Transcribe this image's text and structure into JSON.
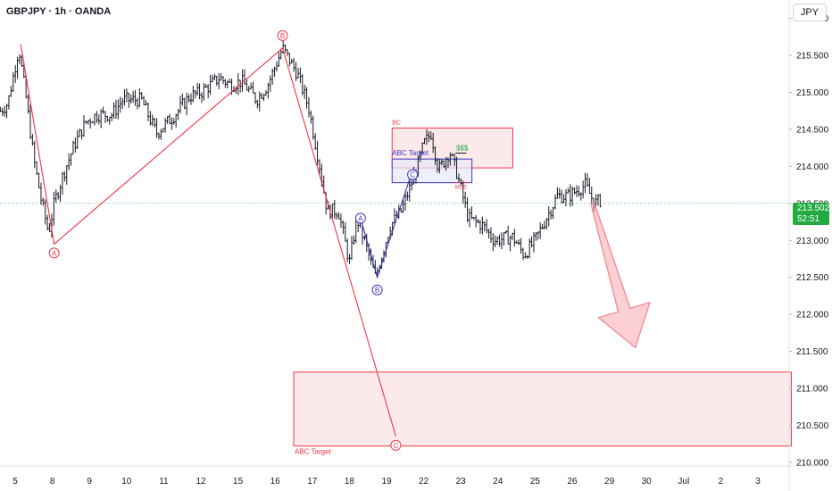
{
  "header": {
    "ticker": "GBPJPY · 1h · OANDA",
    "currency_button": "JPY"
  },
  "colors": {
    "bull": "#26a69a",
    "bar": "#131722",
    "wave_line": "#f23645",
    "zone_fill": "#fce9ea",
    "zone_border": "#f23645",
    "blue": "#3a35c2",
    "green": "#22ab3f",
    "arrow": "#f7a8af"
  },
  "last_price": {
    "value": "213.502",
    "countdown": "52:51",
    "price": 213.502
  },
  "chart_data": {
    "type": "ohlc",
    "title": "GBPJPY · 1h · OANDA",
    "ylim": [
      209.95,
      216.25
    ],
    "y_ticks": [
      {
        "label": "210.000",
        "v": 210.0
      },
      {
        "label": "210.500",
        "v": 210.5
      },
      {
        "label": "211.000",
        "v": 211.0
      },
      {
        "label": "211.500",
        "v": 211.5
      },
      {
        "label": "212.000",
        "v": 212.0
      },
      {
        "label": "212.500",
        "v": 212.5
      },
      {
        "label": "213.000",
        "v": 213.0
      },
      {
        "label": "213.500",
        "v": 213.5
      },
      {
        "label": "214.000",
        "v": 214.0
      },
      {
        "label": "214.500",
        "v": 214.5
      },
      {
        "label": "215.000",
        "v": 215.0
      },
      {
        "label": "215.500",
        "v": 215.5
      },
      {
        "label": "216.000",
        "v": 216.0
      }
    ],
    "x_ticks": [
      {
        "label": "5",
        "t": 0.0
      },
      {
        "label": "8",
        "t": 1.0
      },
      {
        "label": "9",
        "t": 2.0
      },
      {
        "label": "10",
        "t": 3.0
      },
      {
        "label": "11",
        "t": 4.0
      },
      {
        "label": "12",
        "t": 5.0
      },
      {
        "label": "15",
        "t": 6.0
      },
      {
        "label": "16",
        "t": 7.0
      },
      {
        "label": "17",
        "t": 8.0
      },
      {
        "label": "18",
        "t": 9.0
      },
      {
        "label": "19",
        "t": 10.0
      },
      {
        "label": "22",
        "t": 11.0
      },
      {
        "label": "23",
        "t": 12.0
      },
      {
        "label": "24",
        "t": 13.0
      },
      {
        "label": "25",
        "t": 14.0
      },
      {
        "label": "26",
        "t": 15.0
      },
      {
        "label": "29",
        "t": 16.0
      },
      {
        "label": "30",
        "t": 17.0
      },
      {
        "label": "Jul",
        "t": 18.0
      },
      {
        "label": "2",
        "t": 19.0
      },
      {
        "label": "3",
        "t": 20.0
      }
    ],
    "price_path": [
      [
        -0.4,
        214.75
      ],
      [
        -0.2,
        214.85
      ],
      [
        0.1,
        215.6
      ],
      [
        0.3,
        214.9
      ],
      [
        0.5,
        214.1
      ],
      [
        0.7,
        213.55
      ],
      [
        0.9,
        213.1
      ],
      [
        1.05,
        213.5
      ],
      [
        1.3,
        213.9
      ],
      [
        1.6,
        214.3
      ],
      [
        1.9,
        214.6
      ],
      [
        2.2,
        214.7
      ],
      [
        2.6,
        214.7
      ],
      [
        2.9,
        214.9
      ],
      [
        3.4,
        214.9
      ],
      [
        3.8,
        214.45
      ],
      [
        4.3,
        214.7
      ],
      [
        4.7,
        214.95
      ],
      [
        5.0,
        215.0
      ],
      [
        5.5,
        215.2
      ],
      [
        5.8,
        215.1
      ],
      [
        6.1,
        215.15
      ],
      [
        6.5,
        214.9
      ],
      [
        6.8,
        215.1
      ],
      [
        7.2,
        215.6
      ],
      [
        7.6,
        215.25
      ],
      [
        7.9,
        214.8
      ],
      [
        8.2,
        214.0
      ],
      [
        8.4,
        213.4
      ],
      [
        8.7,
        213.4
      ],
      [
        9.0,
        212.7
      ],
      [
        9.2,
        213.3
      ],
      [
        9.4,
        213.0
      ],
      [
        9.7,
        212.5
      ],
      [
        10.1,
        213.2
      ],
      [
        10.4,
        213.4
      ],
      [
        10.8,
        213.95
      ],
      [
        11.0,
        214.3
      ],
      [
        11.2,
        214.45
      ],
      [
        11.4,
        213.95
      ],
      [
        11.7,
        214.2
      ],
      [
        11.9,
        213.9
      ],
      [
        12.2,
        213.3
      ],
      [
        12.6,
        213.2
      ],
      [
        12.9,
        213.0
      ],
      [
        13.4,
        213.05
      ],
      [
        13.7,
        212.8
      ],
      [
        14.0,
        213.0
      ],
      [
        14.3,
        213.3
      ],
      [
        14.6,
        213.6
      ],
      [
        14.9,
        213.6
      ],
      [
        15.2,
        213.7
      ],
      [
        15.35,
        213.75
      ],
      [
        15.6,
        213.5
      ],
      [
        15.8,
        213.55
      ]
    ],
    "wave_count_1": [
      {
        "label": "A",
        "t": 0.15,
        "v": 215.65
      },
      {
        "label": "A",
        "t": 1.05,
        "v": 212.95
      },
      {
        "label": "B",
        "t": 7.2,
        "v": 215.6
      },
      {
        "label": "C",
        "t": 10.25,
        "v": 210.35
      }
    ],
    "wave_count_2": [
      {
        "label": "A",
        "t": 9.3,
        "v": 213.3
      },
      {
        "label": "B",
        "t": 9.75,
        "v": 212.5
      },
      {
        "label": "C",
        "t": 10.7,
        "v": 213.95
      }
    ],
    "annotations": {
      "bc_zone": {
        "label": "BC",
        "t0": 10.15,
        "t1": 13.4,
        "v0": 213.98,
        "v1": 214.52
      },
      "abc_target_small": {
        "label": "ABC Target",
        "t0": 10.15,
        "t1": 12.3,
        "v0": 213.78,
        "v1": 214.1
      },
      "abc_target_large": {
        "label": "ABC Target",
        "t0": 7.5,
        "t1": 20.9,
        "v0": 210.22,
        "v1": 211.22
      },
      "liquidity": {
        "label": "$$$",
        "t0": 11.85,
        "t1": 12.15,
        "v": 214.18
      },
      "mss": {
        "label": "MSS",
        "t0": 11.8,
        "t1": 12.2,
        "v": 213.78
      }
    },
    "projection": {
      "from": [
        15.55,
        213.5
      ],
      "to": [
        16.7,
        211.55
      ]
    },
    "grid": false
  }
}
